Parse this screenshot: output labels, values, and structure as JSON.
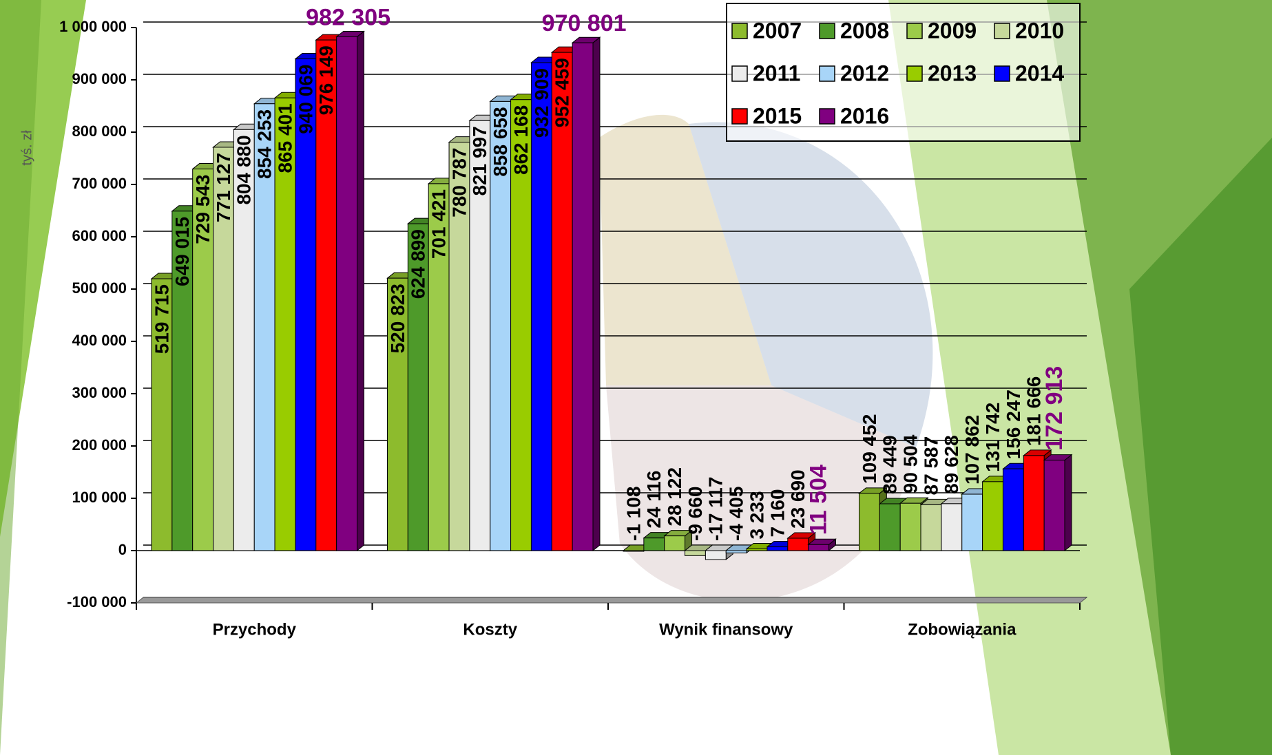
{
  "chart_data": {
    "type": "bar3d",
    "y_axis_title": "tyś. zł",
    "categories": [
      "Przychody",
      "Koszty",
      "Wynik finansowy",
      "Zobowiązania"
    ],
    "series": [
      {
        "name": "2007",
        "color": "#8dbb2d",
        "values": [
          519715,
          520823,
          -1108,
          109452
        ],
        "value_labels": [
          "519 715",
          "520 823",
          "-1 108",
          "109 452"
        ]
      },
      {
        "name": "2008",
        "color": "#4e9a2a",
        "values": [
          649015,
          624899,
          24116,
          89449
        ],
        "value_labels": [
          "649 015",
          "624 899",
          "24 116",
          "89 449"
        ]
      },
      {
        "name": "2009",
        "color": "#9ccb4a",
        "values": [
          729543,
          701421,
          28122,
          90504
        ],
        "value_labels": [
          "729 543",
          "701 421",
          "28 122",
          "90 504"
        ]
      },
      {
        "name": "2010",
        "color": "#c6d89b",
        "values": [
          771127,
          780787,
          -9660,
          87587
        ],
        "value_labels": [
          "771 127",
          "780 787",
          "-9 660",
          "87 587"
        ]
      },
      {
        "name": "2011",
        "color": "#ececec",
        "values": [
          804880,
          821997,
          -17117,
          89628
        ],
        "value_labels": [
          "804 880",
          "821 997",
          "-17 117",
          "89 628"
        ]
      },
      {
        "name": "2012",
        "color": "#a8d5f8",
        "values": [
          854253,
          858658,
          -4405,
          107862
        ],
        "value_labels": [
          "854 253",
          "858 658",
          "-4 405",
          "107 862"
        ]
      },
      {
        "name": "2013",
        "color": "#99cc00",
        "values": [
          865401,
          862168,
          3233,
          131742
        ],
        "value_labels": [
          "865 401",
          "862 168",
          "3 233",
          "131 742"
        ]
      },
      {
        "name": "2014",
        "color": "#0000ff",
        "values": [
          940069,
          932909,
          7160,
          156247
        ],
        "value_labels": [
          "940 069",
          "932 909",
          "7 160",
          "156 247"
        ]
      },
      {
        "name": "2015",
        "color": "#ff0000",
        "values": [
          976149,
          952459,
          23690,
          181666
        ],
        "value_labels": [
          "976 149",
          "952 459",
          "23 690",
          "181 666"
        ]
      },
      {
        "name": "2016",
        "color": "#800080",
        "values": [
          982305,
          970801,
          11504,
          172913
        ],
        "value_labels": [
          "982 305",
          "970 801",
          "11 504",
          "172 913"
        ]
      }
    ],
    "ylim": [
      -100000,
      1000000
    ],
    "yticks": [
      {
        "value": -100000,
        "label": "-100 000"
      },
      0,
      {
        "value": 100000,
        "label": "100 000"
      },
      {
        "value": 200000,
        "label": "200 000"
      },
      {
        "value": 300000,
        "label": "300 000"
      },
      {
        "value": 400000,
        "label": "400 000"
      },
      {
        "value": 500000,
        "label": "500 000"
      },
      {
        "value": 600000,
        "label": "600 000"
      },
      {
        "value": 700000,
        "label": "700 000"
      },
      {
        "value": 800000,
        "label": "800 000"
      },
      {
        "value": 900000,
        "label": "900 000"
      },
      {
        "value": 1000000,
        "label": "1 000 000"
      }
    ],
    "grid": true
  }
}
